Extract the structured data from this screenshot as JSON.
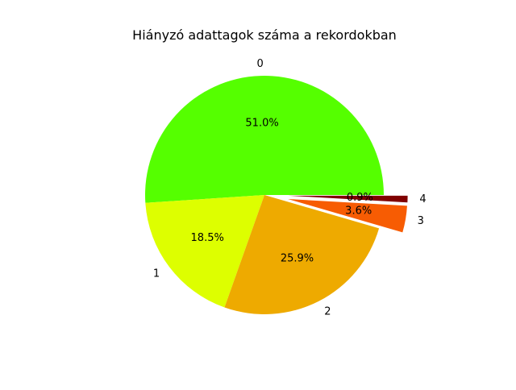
{
  "chart_data": {
    "type": "pie",
    "title": "Hiányzó adattagok száma a rekordokban",
    "categories": [
      "0",
      "1",
      "2",
      "3",
      "4"
    ],
    "values": [
      51.0,
      18.5,
      25.9,
      3.6,
      0.9
    ],
    "value_labels": [
      "51.0%",
      "18.5%",
      "25.9%",
      "3.6%",
      "0.9%"
    ],
    "exploded": [
      false,
      false,
      false,
      true,
      true
    ],
    "colors": [
      "#55ff00",
      "#ddff00",
      "#eeaa00",
      "#f75c03",
      "#800000"
    ]
  }
}
